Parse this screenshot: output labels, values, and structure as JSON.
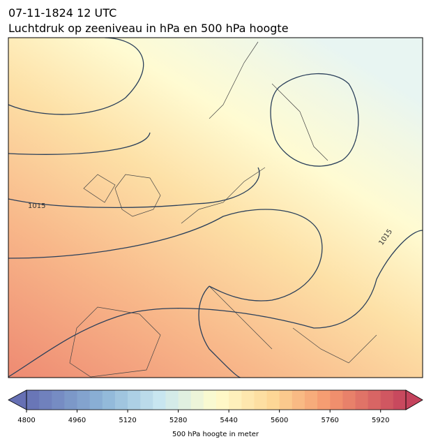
{
  "title_line1": "07-11-1824 12 UTC",
  "title_line2": "Luchtdruk op zeeniveau in hPa en 500 hPa hoogte",
  "contour_labels": [
    "1015",
    "1015"
  ],
  "colorbar": {
    "lim": [
      4800,
      6000
    ],
    "ticks": [
      4800,
      4960,
      5120,
      5280,
      5440,
      5600,
      5760,
      5920
    ],
    "label": "500 hPa hoogte in meter"
  }
}
